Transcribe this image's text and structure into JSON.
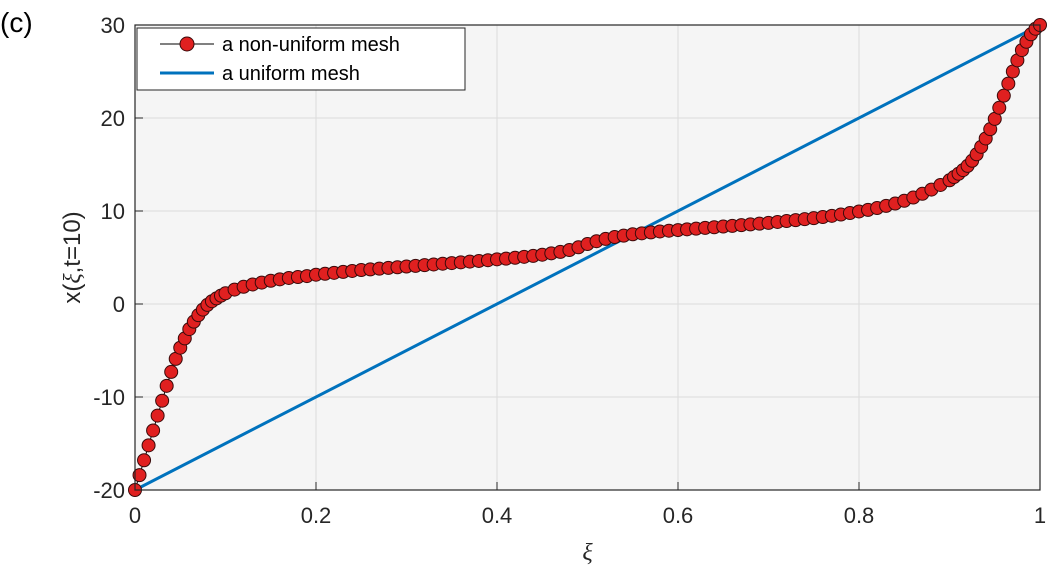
{
  "panel_label": "(c)",
  "chart_data": {
    "type": "line",
    "xlabel": "ξ",
    "ylabel_parts": [
      "x(",
      "ξ",
      ",t=10)"
    ],
    "xlim": [
      0,
      1
    ],
    "ylim": [
      -20,
      30
    ],
    "xticks": [
      0,
      0.2,
      0.4,
      0.6,
      0.8,
      1
    ],
    "xtick_labels": [
      "0",
      "0.2",
      "0.4",
      "0.6",
      "0.8",
      "1"
    ],
    "yticks": [
      -20,
      -10,
      0,
      10,
      20,
      30
    ],
    "ytick_labels": [
      "-20",
      "-10",
      "0",
      "10",
      "20",
      "30"
    ],
    "grid": true,
    "legend_position": "top-left",
    "series": [
      {
        "name": "a non-uniform mesh",
        "style": "line-with-circle-markers",
        "color": "#000000",
        "marker_fill": "#e02020",
        "marker_edge": "#3a0a0a",
        "points": [
          [
            0.0,
            -20.0
          ],
          [
            0.005,
            -18.4
          ],
          [
            0.01,
            -16.8
          ],
          [
            0.015,
            -15.2
          ],
          [
            0.02,
            -13.6
          ],
          [
            0.025,
            -12.0
          ],
          [
            0.03,
            -10.4
          ],
          [
            0.035,
            -8.8
          ],
          [
            0.04,
            -7.3
          ],
          [
            0.045,
            -5.9
          ],
          [
            0.05,
            -4.7
          ],
          [
            0.055,
            -3.7
          ],
          [
            0.06,
            -2.7
          ],
          [
            0.065,
            -1.9
          ],
          [
            0.07,
            -1.2
          ],
          [
            0.075,
            -0.6
          ],
          [
            0.08,
            -0.1
          ],
          [
            0.085,
            0.3
          ],
          [
            0.09,
            0.6
          ],
          [
            0.095,
            0.9
          ],
          [
            0.1,
            1.15
          ],
          [
            0.11,
            1.55
          ],
          [
            0.12,
            1.85
          ],
          [
            0.13,
            2.1
          ],
          [
            0.14,
            2.3
          ],
          [
            0.15,
            2.5
          ],
          [
            0.16,
            2.65
          ],
          [
            0.17,
            2.8
          ],
          [
            0.18,
            2.9
          ],
          [
            0.19,
            3.0
          ],
          [
            0.2,
            3.15
          ],
          [
            0.21,
            3.25
          ],
          [
            0.22,
            3.35
          ],
          [
            0.23,
            3.45
          ],
          [
            0.24,
            3.55
          ],
          [
            0.25,
            3.65
          ],
          [
            0.26,
            3.72
          ],
          [
            0.27,
            3.8
          ],
          [
            0.28,
            3.88
          ],
          [
            0.29,
            3.95
          ],
          [
            0.3,
            4.03
          ],
          [
            0.31,
            4.1
          ],
          [
            0.32,
            4.18
          ],
          [
            0.33,
            4.25
          ],
          [
            0.34,
            4.33
          ],
          [
            0.35,
            4.4
          ],
          [
            0.36,
            4.48
          ],
          [
            0.37,
            4.56
          ],
          [
            0.38,
            4.63
          ],
          [
            0.39,
            4.71
          ],
          [
            0.4,
            4.8
          ],
          [
            0.41,
            4.88
          ],
          [
            0.42,
            4.97
          ],
          [
            0.43,
            5.07
          ],
          [
            0.44,
            5.17
          ],
          [
            0.45,
            5.3
          ],
          [
            0.46,
            5.45
          ],
          [
            0.47,
            5.6
          ],
          [
            0.48,
            5.8
          ],
          [
            0.49,
            6.1
          ],
          [
            0.5,
            6.45
          ],
          [
            0.51,
            6.75
          ],
          [
            0.52,
            7.0
          ],
          [
            0.53,
            7.2
          ],
          [
            0.54,
            7.35
          ],
          [
            0.55,
            7.5
          ],
          [
            0.56,
            7.6
          ],
          [
            0.57,
            7.7
          ],
          [
            0.58,
            7.8
          ],
          [
            0.59,
            7.88
          ],
          [
            0.6,
            7.95
          ],
          [
            0.61,
            8.03
          ],
          [
            0.62,
            8.1
          ],
          [
            0.63,
            8.18
          ],
          [
            0.64,
            8.25
          ],
          [
            0.65,
            8.33
          ],
          [
            0.66,
            8.4
          ],
          [
            0.67,
            8.48
          ],
          [
            0.68,
            8.56
          ],
          [
            0.69,
            8.64
          ],
          [
            0.7,
            8.72
          ],
          [
            0.71,
            8.82
          ],
          [
            0.72,
            8.92
          ],
          [
            0.73,
            9.02
          ],
          [
            0.74,
            9.12
          ],
          [
            0.75,
            9.23
          ],
          [
            0.76,
            9.35
          ],
          [
            0.77,
            9.48
          ],
          [
            0.78,
            9.62
          ],
          [
            0.79,
            9.78
          ],
          [
            0.8,
            9.95
          ],
          [
            0.81,
            10.12
          ],
          [
            0.82,
            10.32
          ],
          [
            0.83,
            10.55
          ],
          [
            0.84,
            10.8
          ],
          [
            0.85,
            11.1
          ],
          [
            0.86,
            11.45
          ],
          [
            0.87,
            11.85
          ],
          [
            0.88,
            12.3
          ],
          [
            0.89,
            12.8
          ],
          [
            0.9,
            13.3
          ],
          [
            0.905,
            13.65
          ],
          [
            0.91,
            14.0
          ],
          [
            0.915,
            14.4
          ],
          [
            0.92,
            14.85
          ],
          [
            0.925,
            15.4
          ],
          [
            0.93,
            16.1
          ],
          [
            0.935,
            16.9
          ],
          [
            0.94,
            17.8
          ],
          [
            0.945,
            18.8
          ],
          [
            0.95,
            19.9
          ],
          [
            0.955,
            21.1
          ],
          [
            0.96,
            22.4
          ],
          [
            0.965,
            23.7
          ],
          [
            0.97,
            25.0
          ],
          [
            0.975,
            26.2
          ],
          [
            0.98,
            27.3
          ],
          [
            0.985,
            28.2
          ],
          [
            0.99,
            29.0
          ],
          [
            0.995,
            29.6
          ],
          [
            1.0,
            30.0
          ]
        ]
      },
      {
        "name": "a uniform mesh",
        "style": "line",
        "color": "#0072bd",
        "points": [
          [
            0,
            -20
          ],
          [
            1,
            30
          ]
        ]
      }
    ]
  }
}
